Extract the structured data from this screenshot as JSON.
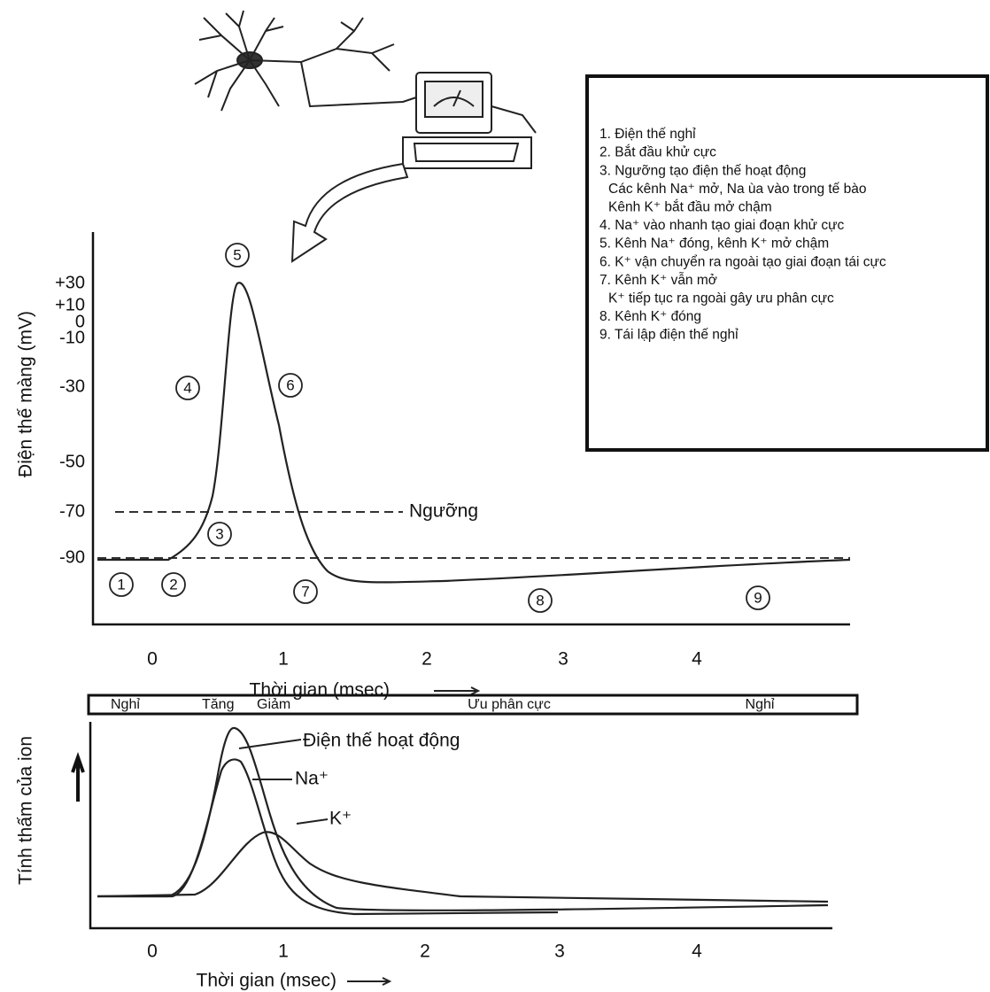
{
  "top_chart": {
    "y_axis_label": "Điện thế màng (mV)",
    "y_ticks": [
      "+30",
      "+10",
      "0",
      "-10",
      "-30",
      "-50",
      "-70",
      "-90"
    ],
    "x_ticks": [
      "0",
      "1",
      "2",
      "3",
      "4"
    ],
    "x_axis_label": "Thời gian (msec)",
    "threshold_label": "Ngưỡng",
    "markers": [
      "1",
      "2",
      "3",
      "4",
      "5",
      "6",
      "7",
      "8",
      "9"
    ]
  },
  "legend": {
    "lines": [
      "1. Điện thế nghỉ",
      "2. Bắt đầu khử cực",
      "3. Ngưỡng tạo điện thế hoạt động",
      "Các kênh Na⁺ mở, Na ùa vào trong tế bào",
      "Kênh K⁺ bắt đầu mở chậm",
      "4. Na⁺ vào nhanh tạo giai đoạn khử cực",
      "5. Kênh Na⁺ đóng, kênh K⁺ mở chậm",
      "6. K⁺ vận chuyển ra ngoài tạo giai đoạn tái cực",
      "7. Kênh K⁺ vẫn mở",
      "K⁺ tiếp tục ra ngoài gây ưu phân cực",
      "8. Kênh K⁺ đóng",
      "9. Tái lập điện thế nghỉ"
    ]
  },
  "bottom_chart": {
    "phases": [
      "Nghỉ",
      "Tăng",
      "Giảm",
      "Ưu phân cực",
      "Nghỉ"
    ],
    "y_axis_label": "Tính thấm của ion",
    "x_ticks": [
      "0",
      "1",
      "2",
      "3",
      "4"
    ],
    "x_axis_label": "Thời gian (msec)",
    "curve_labels": [
      "Điện thế hoạt động",
      "Na⁺",
      "K⁺"
    ]
  }
}
